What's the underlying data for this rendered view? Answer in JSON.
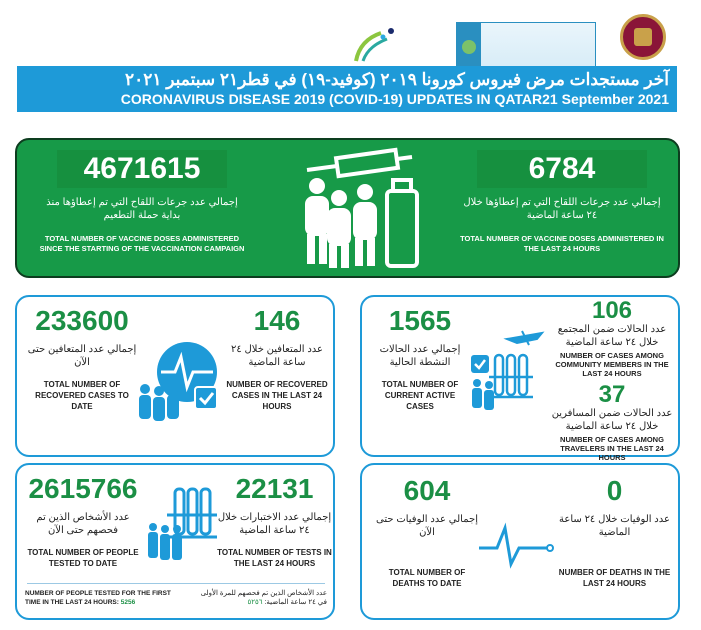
{
  "header": {
    "logos": {
      "phcc": "مؤسسة الرعاية الصحية الأولية PRIMARY HEALTH CARE CORPORATION",
      "hmc": "مؤسسة حمد الطبية Hamad Medical Corporation",
      "moph": "وزارة الصحة العامة"
    },
    "title_ar": "آخر مستجدات مرض فيروس كورونا ٢٠١٩ (كوفيد-١٩) في قطر٢١ سبتمبر ٢٠٢١",
    "title_en": "CORONAVIRUS DISEASE 2019 (COVID-19) UPDATES IN QATAR21 September 2021"
  },
  "vaccine": {
    "total": {
      "value": "4671615",
      "ar": "إجمالي عدد جرعات اللقاح التي تم إعطاؤها منذ بداية حملة التطعيم",
      "en": "TOTAL NUMBER OF VACCINE DOSES ADMINISTERED SINCE THE STARTING OF THE VACCINATION CAMPAIGN"
    },
    "last24": {
      "value": "6784",
      "ar": "إجمالي عدد جرعات اللقاح التي تم إعطاؤها خلال ٢٤ ساعة الماضية",
      "en": "TOTAL NUMBER OF VACCINE DOSES ADMINISTERED IN THE LAST 24 HOURS"
    }
  },
  "recovered": {
    "total": {
      "value": "233600",
      "ar": "إجمالي عدد المتعافين حتى الآن",
      "en": "TOTAL NUMBER OF RECOVERED CASES TO DATE"
    },
    "last24": {
      "value": "146",
      "ar": "عدد المتعافين خلال ٢٤ ساعة الماضية",
      "en": "NUMBER OF RECOVERED CASES IN THE LAST 24 HOURS"
    }
  },
  "active": {
    "total": {
      "value": "1565",
      "ar": "إجمالي عدد الحالات النشطة الحالية",
      "en": "TOTAL NUMBER OF CURRENT ACTIVE CASES"
    },
    "community": {
      "value": "106",
      "ar": "عدد الحالات ضمن المجتمع خلال ٢٤ ساعة الماضية",
      "en": "NUMBER OF CASES AMONG COMMUNITY MEMBERS IN THE LAST 24 HOURS"
    },
    "travelers": {
      "value": "37",
      "ar": "عدد الحالات ضمن المسافرين خلال ٢٤ ساعة الماضية",
      "en": "NUMBER OF CASES AMONG TRAVELERS IN THE LAST 24 HOURS"
    }
  },
  "tests": {
    "people": {
      "value": "2615766",
      "ar": "عدد الأشخاص الذين تم فحصهم حتى الآن",
      "en": "TOTAL NUMBER OF PEOPLE TESTED TO DATE"
    },
    "last24": {
      "value": "22131",
      "ar": "إجمالي عدد الاختبارات خلال ٢٤ ساعة الماضية",
      "en": "TOTAL NUMBER OF TESTS IN THE LAST 24 HOURS"
    },
    "first_time_en": "NUMBER OF PEOPLE TESTED FOR THE FIRST TIME IN THE LAST 24 HOURS:",
    "first_time_value": "5256",
    "first_time_ar": "عدد الأشخاص الذين تم فحصهم للمرة الأولى في ٢٤ ساعة الماضية:",
    "first_time_value_ar": "٥٢٥٦"
  },
  "deaths": {
    "total": {
      "value": "604",
      "ar": "إجمالي عدد الوفيات حتى الآن",
      "en": "TOTAL NUMBER OF DEATHS TO DATE"
    },
    "last24": {
      "value": "0",
      "ar": "عدد الوفيات خلال ٢٤ ساعة الماضية",
      "en": "NUMBER OF DEATHS IN THE LAST 24 HOURS"
    }
  },
  "colors": {
    "green": "#179a48",
    "blue": "#1e9ad8",
    "number_green": "#1b8f45"
  }
}
